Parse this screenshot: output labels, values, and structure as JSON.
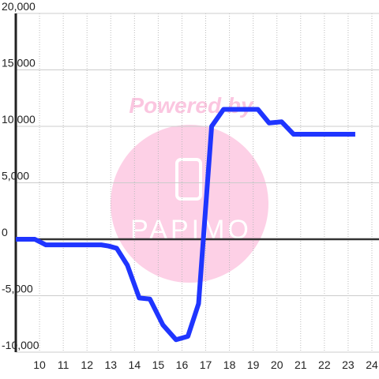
{
  "chart_data": {
    "type": "line",
    "watermark": [
      "Powered by",
      "PAPIMO"
    ],
    "x": [
      9.0,
      9.8,
      10.27,
      12.6,
      12.9,
      13.25,
      13.7,
      14.2,
      14.65,
      15.2,
      15.75,
      16.25,
      16.7,
      17.25,
      17.75,
      19.2,
      19.67,
      20.2,
      20.7,
      23.3
    ],
    "series": [
      {
        "color": "#1f35ff",
        "values": [
          0,
          0,
          -500,
          -500,
          -600,
          -800,
          -2300,
          -5200,
          -5300,
          -7600,
          -8900,
          -8600,
          -5700,
          10000,
          11500,
          11500,
          10300,
          10400,
          9300,
          9300
        ]
      }
    ],
    "xlim": [
      9,
      24.3
    ],
    "xticks": [
      10,
      11,
      12,
      13,
      14,
      15,
      16,
      17,
      18,
      19,
      20,
      21,
      22,
      23,
      24
    ],
    "ylim": [
      -10000,
      20000
    ],
    "yticks": [
      {
        "value": -10000,
        "label": "-10,000"
      },
      {
        "value": -5000,
        "label": "-5,000"
      },
      0,
      {
        "value": 5000,
        "label": "5,000"
      },
      {
        "value": 10000,
        "label": "10,000"
      },
      {
        "value": 15000,
        "label": "15,000"
      },
      {
        "value": 20000,
        "label": "20,000"
      }
    ],
    "grid": true
  }
}
